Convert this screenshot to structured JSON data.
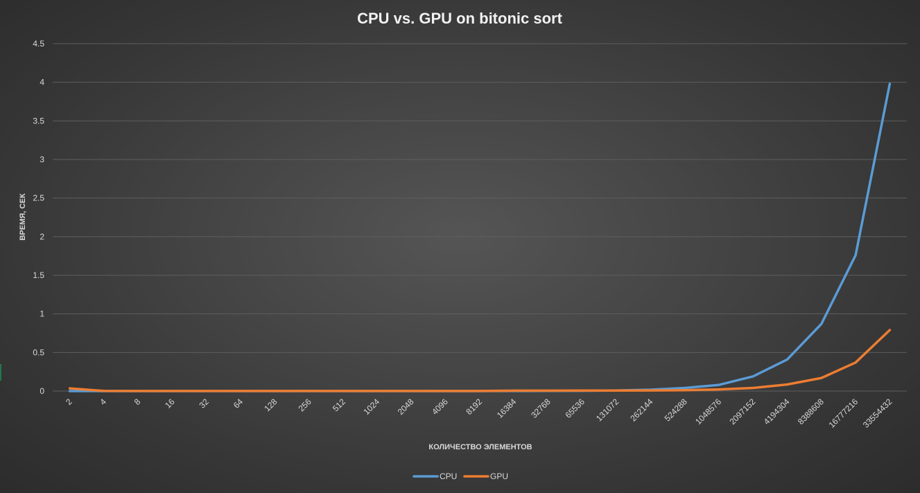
{
  "chart_data": {
    "type": "line",
    "title": "CPU vs. GPU on bitonic sort",
    "xlabel": "КОЛИЧЕСТВО ЭЛЕМЕНТОВ",
    "ylabel": "ВРЕМЯ, СЕК",
    "categories": [
      "2",
      "4",
      "8",
      "16",
      "32",
      "64",
      "128",
      "256",
      "512",
      "1024",
      "2048",
      "4096",
      "8192",
      "16384",
      "32768",
      "65536",
      "131072",
      "262144",
      "524288",
      "1048576",
      "2097152",
      "4194304",
      "8388608",
      "16777216",
      "33554432"
    ],
    "ylim": [
      0,
      4.5
    ],
    "yticks": [
      "0",
      "0.5",
      "1",
      "1.5",
      "2",
      "2.5",
      "3",
      "3.5",
      "4",
      "4.5"
    ],
    "grid": true,
    "legend_position": "bottom",
    "series": [
      {
        "name": "CPU",
        "color": "#5b9bd5",
        "values": [
          0,
          0,
          0,
          0,
          0,
          0,
          0,
          0,
          0,
          0,
          0,
          0,
          0,
          0.001,
          0.002,
          0.004,
          0.008,
          0.018,
          0.04,
          0.08,
          0.19,
          0.41,
          0.87,
          1.76,
          3.98
        ]
      },
      {
        "name": "GPU",
        "color": "#ed7d31",
        "values": [
          0.035,
          0.002,
          0.001,
          0.001,
          0.001,
          0.001,
          0.001,
          0.001,
          0.001,
          0.001,
          0.001,
          0.001,
          0.001,
          0.005,
          0.005,
          0.006,
          0.006,
          0.008,
          0.012,
          0.022,
          0.04,
          0.085,
          0.17,
          0.37,
          0.79
        ]
      }
    ]
  }
}
